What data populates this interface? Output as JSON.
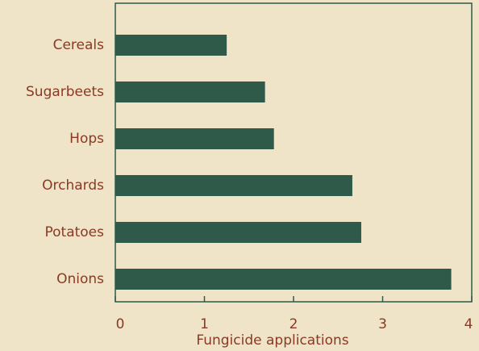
{
  "chart_data": {
    "type": "bar",
    "orientation": "horizontal",
    "categories": [
      "Cereals",
      "Sugarbeets",
      "Hops",
      "Orchards",
      "Potatoes",
      "Onions"
    ],
    "values": [
      1.25,
      1.68,
      1.78,
      2.66,
      2.76,
      3.77
    ],
    "color": "#2f5a4a",
    "xlabel": "Fungicide applications",
    "xlim": [
      0,
      4
    ],
    "xticks": [
      0,
      1,
      2,
      3,
      4
    ]
  }
}
